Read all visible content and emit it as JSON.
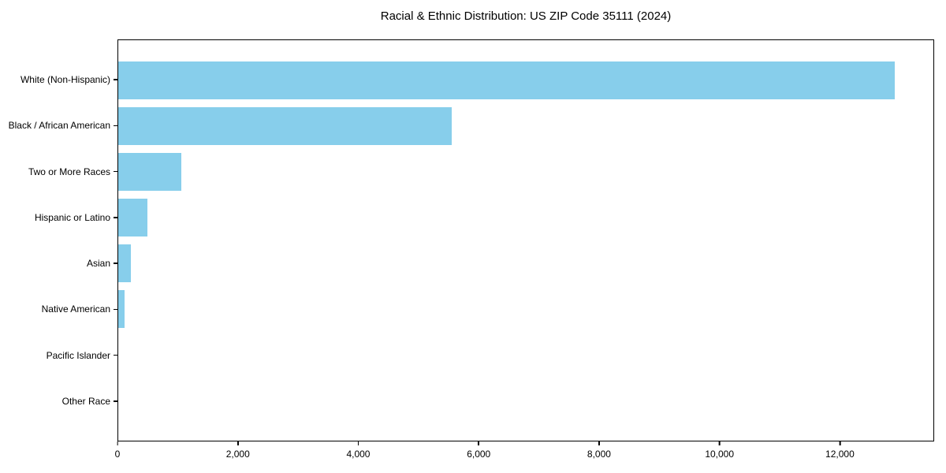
{
  "chart_data": {
    "type": "bar",
    "orientation": "horizontal",
    "title": "Racial & Ethnic Distribution: US ZIP Code 35111 (2024)",
    "categories": [
      "White (Non-Hispanic)",
      "Black / African American",
      "Two or More Races",
      "Hispanic or Latino",
      "Asian",
      "Native American",
      "Pacific Islander",
      "Other Race"
    ],
    "values": [
      12920,
      5550,
      1045,
      485,
      212,
      105,
      0,
      0
    ],
    "xlabel": "",
    "ylabel": "",
    "xlim": [
      0,
      13566
    ],
    "xticks": [
      0,
      2000,
      4000,
      6000,
      8000,
      10000,
      12000
    ],
    "xtick_labels": [
      "0",
      "2,000",
      "4,000",
      "6,000",
      "8,000",
      "10,000",
      "12,000"
    ],
    "grid": false,
    "legend": null,
    "bar_color": "#87CEEB",
    "axis_color": "#000000",
    "background_color": "#ffffff"
  }
}
